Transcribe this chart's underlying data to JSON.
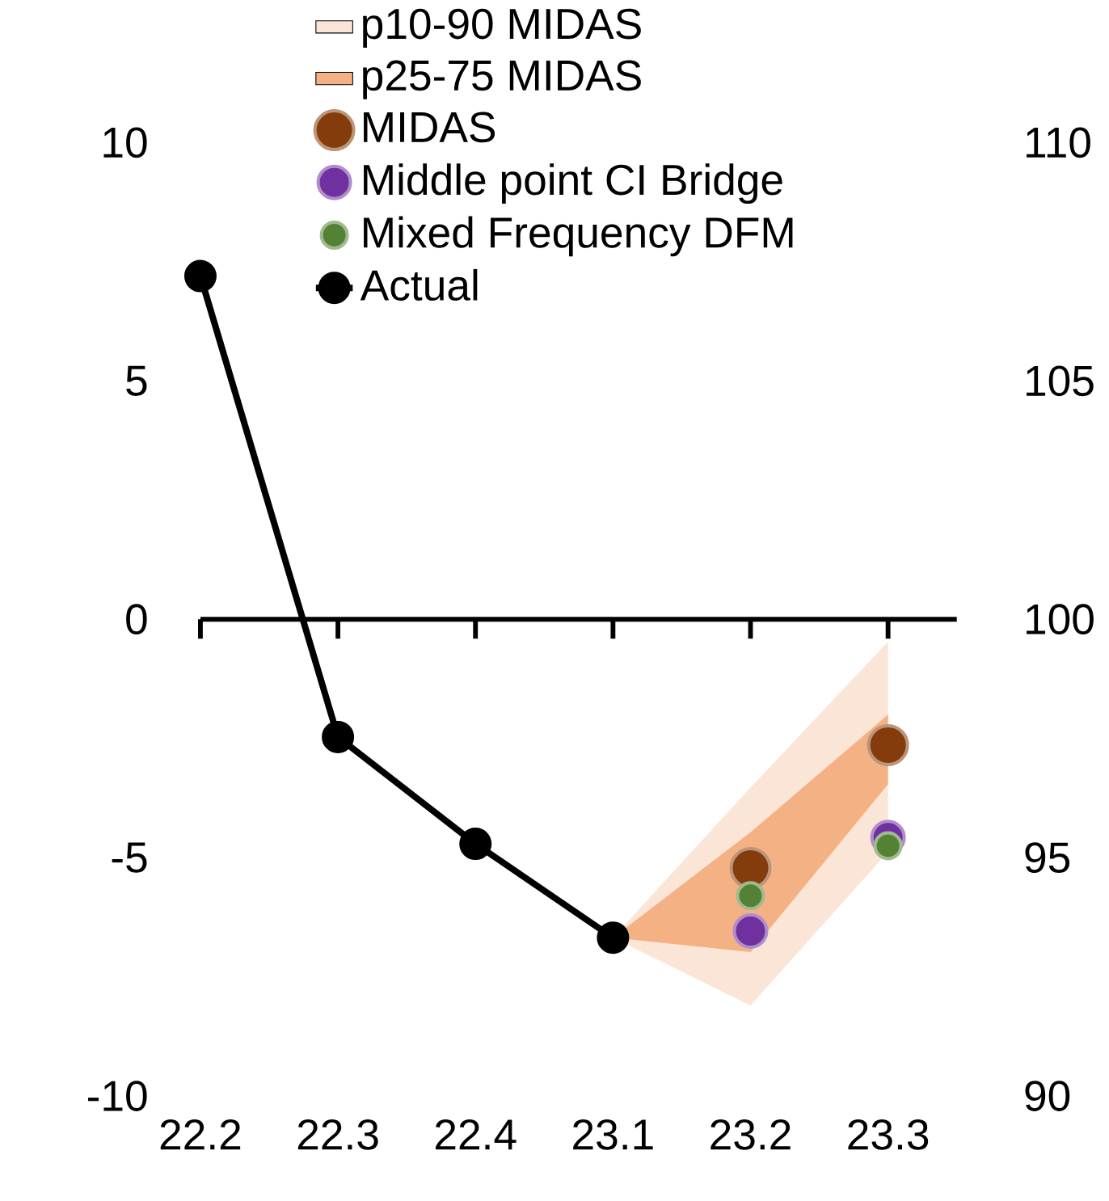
{
  "chart_data": {
    "type": "line",
    "categories": [
      "22.2",
      "22.3",
      "22.4",
      "23.1",
      "23.2",
      "23.3"
    ],
    "ylim": [
      -10,
      10
    ],
    "yticks": [
      -10,
      -5,
      0,
      5,
      10
    ],
    "y2lim": [
      90,
      110
    ],
    "y2ticks": [
      90,
      95,
      100,
      105,
      110
    ],
    "legend": "top",
    "series": [
      {
        "name": "p10-90 MIDAS",
        "color": "#fbe5d6",
        "values": [
          null,
          null,
          null,
          null,
          null,
          null
        ],
        "lower": [
          null,
          null,
          null,
          -6.68,
          -8.1,
          -4.88
        ],
        "upper": [
          null,
          null,
          null,
          -6.68,
          -3.53,
          -0.47
        ]
      },
      {
        "name": "p25-75 MIDAS",
        "color": "#f4b183",
        "values": [
          null,
          null,
          null,
          null,
          null,
          null
        ],
        "lower": [
          null,
          null,
          null,
          -6.68,
          -6.98,
          -3.46
        ],
        "upper": [
          null,
          null,
          null,
          -6.68,
          -4.47,
          -2.0
        ]
      },
      {
        "name": "MIDAS",
        "type": "scatter",
        "marker": "circle",
        "color": "#843c0c",
        "values": [
          null,
          null,
          null,
          null,
          -5.22,
          -2.64
        ]
      },
      {
        "name": "Middle point CI Bridge",
        "type": "scatter",
        "marker": "circle",
        "color": "#7030a0",
        "values": [
          null,
          null,
          null,
          null,
          -6.54,
          -4.58
        ]
      },
      {
        "name": "Mixed Frequency DFM",
        "type": "scatter",
        "marker": "circle",
        "color": "#548235",
        "values": [
          null,
          null,
          null,
          null,
          -5.8,
          -4.75
        ]
      },
      {
        "name": "Actual",
        "marker": "circle",
        "color": "#000000",
        "values": [
          7.2,
          -2.47,
          -4.71,
          -6.68,
          null,
          null
        ]
      }
    ]
  }
}
